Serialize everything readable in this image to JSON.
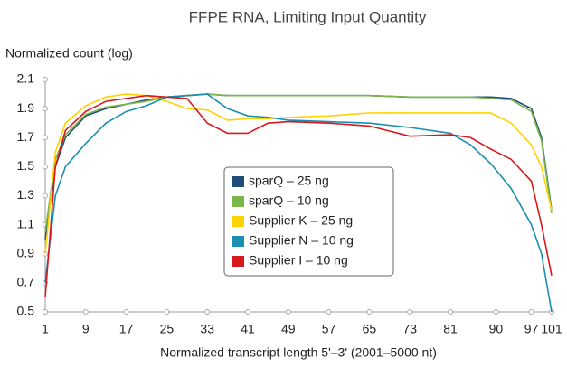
{
  "chart_data": {
    "type": "line",
    "title": "FFPE RNA, Limiting Input Quantity",
    "y_label": "Normalized count (log)",
    "x_label": "Normalized transcript length 5'–3' (2001–5000 nt)",
    "x": [
      1,
      3,
      5,
      9,
      13,
      17,
      21,
      25,
      29,
      33,
      37,
      41,
      45,
      49,
      57,
      65,
      73,
      81,
      85,
      89,
      93,
      97,
      99,
      101
    ],
    "xlim": [
      1,
      101
    ],
    "xticks": [
      1,
      9,
      17,
      25,
      33,
      41,
      49,
      57,
      65,
      73,
      81,
      90,
      97,
      101
    ],
    "ylim": [
      0.5,
      2.1
    ],
    "yticks": [
      0.5,
      0.7,
      0.9,
      1.1,
      1.3,
      1.5,
      1.7,
      1.9,
      2.1
    ],
    "legend": "center",
    "series": [
      {
        "name": "sparQ – 25 ng",
        "color": "#1f4e79",
        "values": [
          1.0,
          1.5,
          1.7,
          1.85,
          1.9,
          1.93,
          1.96,
          1.98,
          1.99,
          2.0,
          1.99,
          1.99,
          1.99,
          1.99,
          1.99,
          1.99,
          1.98,
          1.98,
          1.98,
          1.98,
          1.97,
          1.9,
          1.7,
          1.2
        ]
      },
      {
        "name": "sparQ – 10 ng",
        "color": "#7ab648",
        "values": [
          1.05,
          1.55,
          1.72,
          1.86,
          1.91,
          1.93,
          1.95,
          1.98,
          1.99,
          2.0,
          1.99,
          1.99,
          1.99,
          1.99,
          1.99,
          1.99,
          1.98,
          1.98,
          1.98,
          1.97,
          1.96,
          1.88,
          1.68,
          1.18
        ]
      },
      {
        "name": "Supplier K – 25 ng",
        "color": "#ffd200",
        "values": [
          0.9,
          1.6,
          1.8,
          1.92,
          1.98,
          2.0,
          1.99,
          1.95,
          1.9,
          1.89,
          1.82,
          1.83,
          1.83,
          1.84,
          1.85,
          1.87,
          1.87,
          1.87,
          1.87,
          1.87,
          1.8,
          1.65,
          1.5,
          1.2
        ]
      },
      {
        "name": "Supplier N – 10 ng",
        "color": "#1a8fb0",
        "values": [
          0.7,
          1.3,
          1.5,
          1.66,
          1.8,
          1.88,
          1.92,
          1.98,
          1.99,
          2.0,
          1.9,
          1.85,
          1.84,
          1.82,
          1.81,
          1.8,
          1.77,
          1.73,
          1.65,
          1.52,
          1.35,
          1.1,
          0.9,
          0.5
        ]
      },
      {
        "name": "Supplier I – 10 ng",
        "color": "#d7191c",
        "values": [
          0.6,
          1.5,
          1.75,
          1.88,
          1.95,
          1.97,
          1.99,
          1.98,
          1.97,
          1.8,
          1.73,
          1.73,
          1.8,
          1.81,
          1.8,
          1.78,
          1.71,
          1.72,
          1.7,
          1.62,
          1.55,
          1.4,
          1.1,
          0.75
        ]
      }
    ]
  }
}
